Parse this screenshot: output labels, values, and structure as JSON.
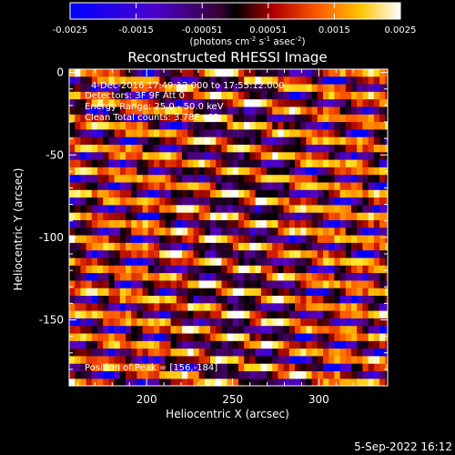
{
  "chart_data": {
    "type": "heatmap",
    "title": "Reconstructed RHESSI Image",
    "xlabel": "Heliocentric X (arcsec)",
    "ylabel": "Heliocentric Y (arcsec)",
    "xlim": [
      155,
      340
    ],
    "ylim": [
      -190,
      2
    ],
    "x_ticks": [
      200,
      250,
      300
    ],
    "y_ticks": [
      0,
      -50,
      -100,
      -150
    ],
    "colorbar": {
      "range": [
        -0.0025,
        0.0025
      ],
      "ticks": [
        "-0.0025",
        "-0.0015",
        "-0.00051",
        "0.00051",
        "0.0015",
        "0.0025"
      ],
      "unit_label": "(photons cm",
      "unit_exp1": "-2",
      "unit_mid": " s",
      "unit_exp2": "-1",
      "unit_tail": " asec",
      "unit_exp3": "-2",
      "unit_close": ")"
    },
    "pattern": {
      "description_kind": "diagonal striped fringes",
      "stripe_slope_arcsec": -0.18,
      "stripe_period_arcsec": 14.5
    },
    "annotations": {
      "time_range": "4-Dec-2016 17:49:12.000 to 17:55:12.000",
      "detectors": "Detectors: 3F 9F  Att 0",
      "energy_range": "Energy Range: 25.0 - 50.0 keV",
      "clean": "Clean     Total counts: 3.78E+03",
      "peak": "Position of Peak = [156,-184]"
    }
  },
  "footer": {
    "date": "5-Sep-2022 16:12"
  }
}
